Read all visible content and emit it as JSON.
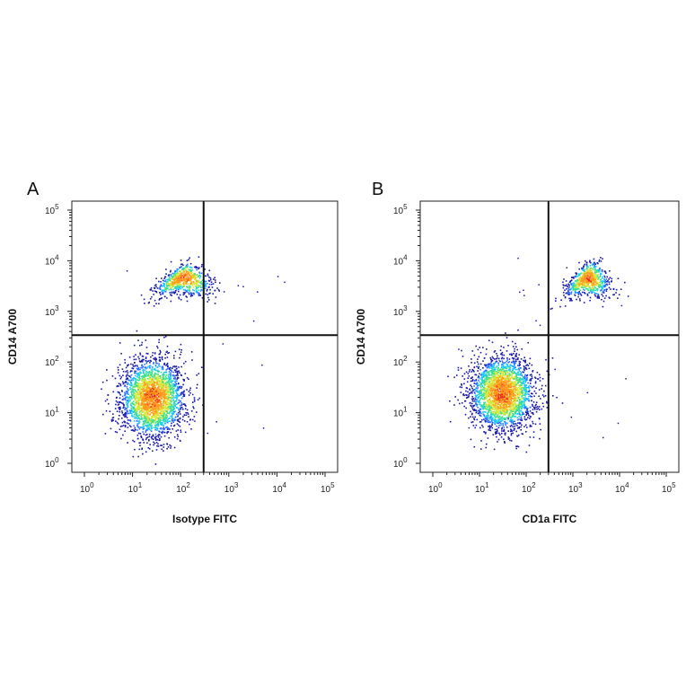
{
  "chart_data": [
    {
      "type": "scatter",
      "panel_label": "A",
      "xlabel": "Isotype FITC",
      "ylabel": "CD14 A700",
      "x_scale": "log",
      "y_scale": "log",
      "xlim": [
        1,
        100000
      ],
      "ylim": [
        1,
        100000
      ],
      "x_ticks": [
        {
          "base": "10",
          "exp": "0"
        },
        {
          "base": "10",
          "exp": "1"
        },
        {
          "base": "10",
          "exp": "2"
        },
        {
          "base": "10",
          "exp": "3"
        },
        {
          "base": "10",
          "exp": "4"
        },
        {
          "base": "10",
          "exp": "5"
        }
      ],
      "y_ticks": [
        {
          "base": "10",
          "exp": "0"
        },
        {
          "base": "10",
          "exp": "1"
        },
        {
          "base": "10",
          "exp": "2"
        },
        {
          "base": "10",
          "exp": "3"
        },
        {
          "base": "10",
          "exp": "4"
        },
        {
          "base": "10",
          "exp": "5"
        }
      ],
      "quadrant_gate": {
        "x": 300,
        "y": 340
      },
      "populations": [
        {
          "center_x": 25,
          "center_y": 20,
          "spread_log_x": 0.33,
          "spread_log_y": 0.38,
          "events": 2600
        },
        {
          "center_x": 110,
          "center_y": 5000,
          "spread_log_x": 0.28,
          "spread_log_y": 0.14,
          "events": 700
        }
      ],
      "color_scale": [
        "#1a1aa8",
        "#2f6bff",
        "#19c8ff",
        "#3fe08a",
        "#d8e83a",
        "#ff9a1e",
        "#e8281c"
      ]
    },
    {
      "type": "scatter",
      "panel_label": "B",
      "xlabel": "CD1a FITC",
      "ylabel": "CD14 A700",
      "x_scale": "log",
      "y_scale": "log",
      "xlim": [
        1,
        100000
      ],
      "ylim": [
        1,
        100000
      ],
      "x_ticks": [
        {
          "base": "10",
          "exp": "0"
        },
        {
          "base": "10",
          "exp": "1"
        },
        {
          "base": "10",
          "exp": "2"
        },
        {
          "base": "10",
          "exp": "3"
        },
        {
          "base": "10",
          "exp": "4"
        },
        {
          "base": "10",
          "exp": "5"
        }
      ],
      "y_ticks": [
        {
          "base": "10",
          "exp": "0"
        },
        {
          "base": "10",
          "exp": "1"
        },
        {
          "base": "10",
          "exp": "2"
        },
        {
          "base": "10",
          "exp": "3"
        },
        {
          "base": "10",
          "exp": "4"
        },
        {
          "base": "10",
          "exp": "5"
        }
      ],
      "quadrant_gate": {
        "x": 300,
        "y": 340
      },
      "populations": [
        {
          "center_x": 30,
          "center_y": 25,
          "spread_log_x": 0.34,
          "spread_log_y": 0.36,
          "events": 2600
        },
        {
          "center_x": 2000,
          "center_y": 5000,
          "spread_log_x": 0.22,
          "spread_log_y": 0.16,
          "events": 700
        }
      ],
      "color_scale": [
        "#1a1aa8",
        "#2f6bff",
        "#19c8ff",
        "#3fe08a",
        "#d8e83a",
        "#ff9a1e",
        "#e8281c"
      ]
    }
  ]
}
